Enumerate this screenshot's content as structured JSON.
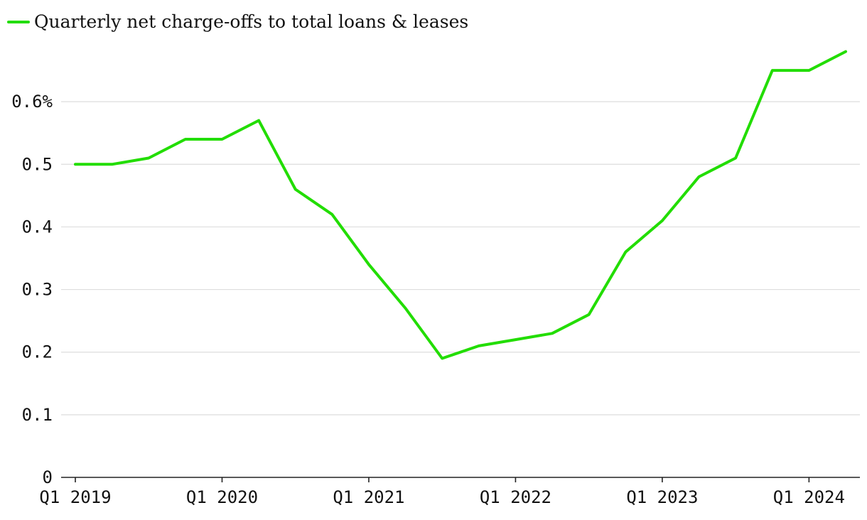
{
  "chart_data": {
    "type": "line",
    "x": [
      "Q1 2019",
      "Q2 2019",
      "Q3 2019",
      "Q4 2019",
      "Q1 2020",
      "Q2 2020",
      "Q3 2020",
      "Q4 2020",
      "Q1 2021",
      "Q2 2021",
      "Q3 2021",
      "Q4 2021",
      "Q1 2022",
      "Q2 2022",
      "Q3 2022",
      "Q4 2022",
      "Q1 2023",
      "Q2 2023",
      "Q3 2023",
      "Q4 2023",
      "Q1 2024",
      "Q2 2024"
    ],
    "series": [
      {
        "name": "Quarterly net charge-offs to total loans & leases",
        "color": "#22dd00",
        "values": [
          0.5,
          0.5,
          0.51,
          0.54,
          0.54,
          0.57,
          0.46,
          0.42,
          0.34,
          0.27,
          0.19,
          0.21,
          0.22,
          0.23,
          0.26,
          0.36,
          0.41,
          0.48,
          0.51,
          0.65,
          0.65,
          0.68
        ]
      }
    ],
    "x_tick_labels": [
      "Q1 2019",
      "Q1 2020",
      "Q1 2021",
      "Q1 2022",
      "Q1 2023",
      "Q1 2024"
    ],
    "y_ticks": [
      0,
      0.1,
      0.2,
      0.3,
      0.4,
      0.5,
      0.6
    ],
    "y_tick_labels": [
      "0",
      "0.1",
      "0.2",
      "0.3",
      "0.4",
      "0.5",
      "0.6%"
    ],
    "ylim": [
      0,
      0.7
    ],
    "grid": true,
    "legend_position": "top-left"
  }
}
